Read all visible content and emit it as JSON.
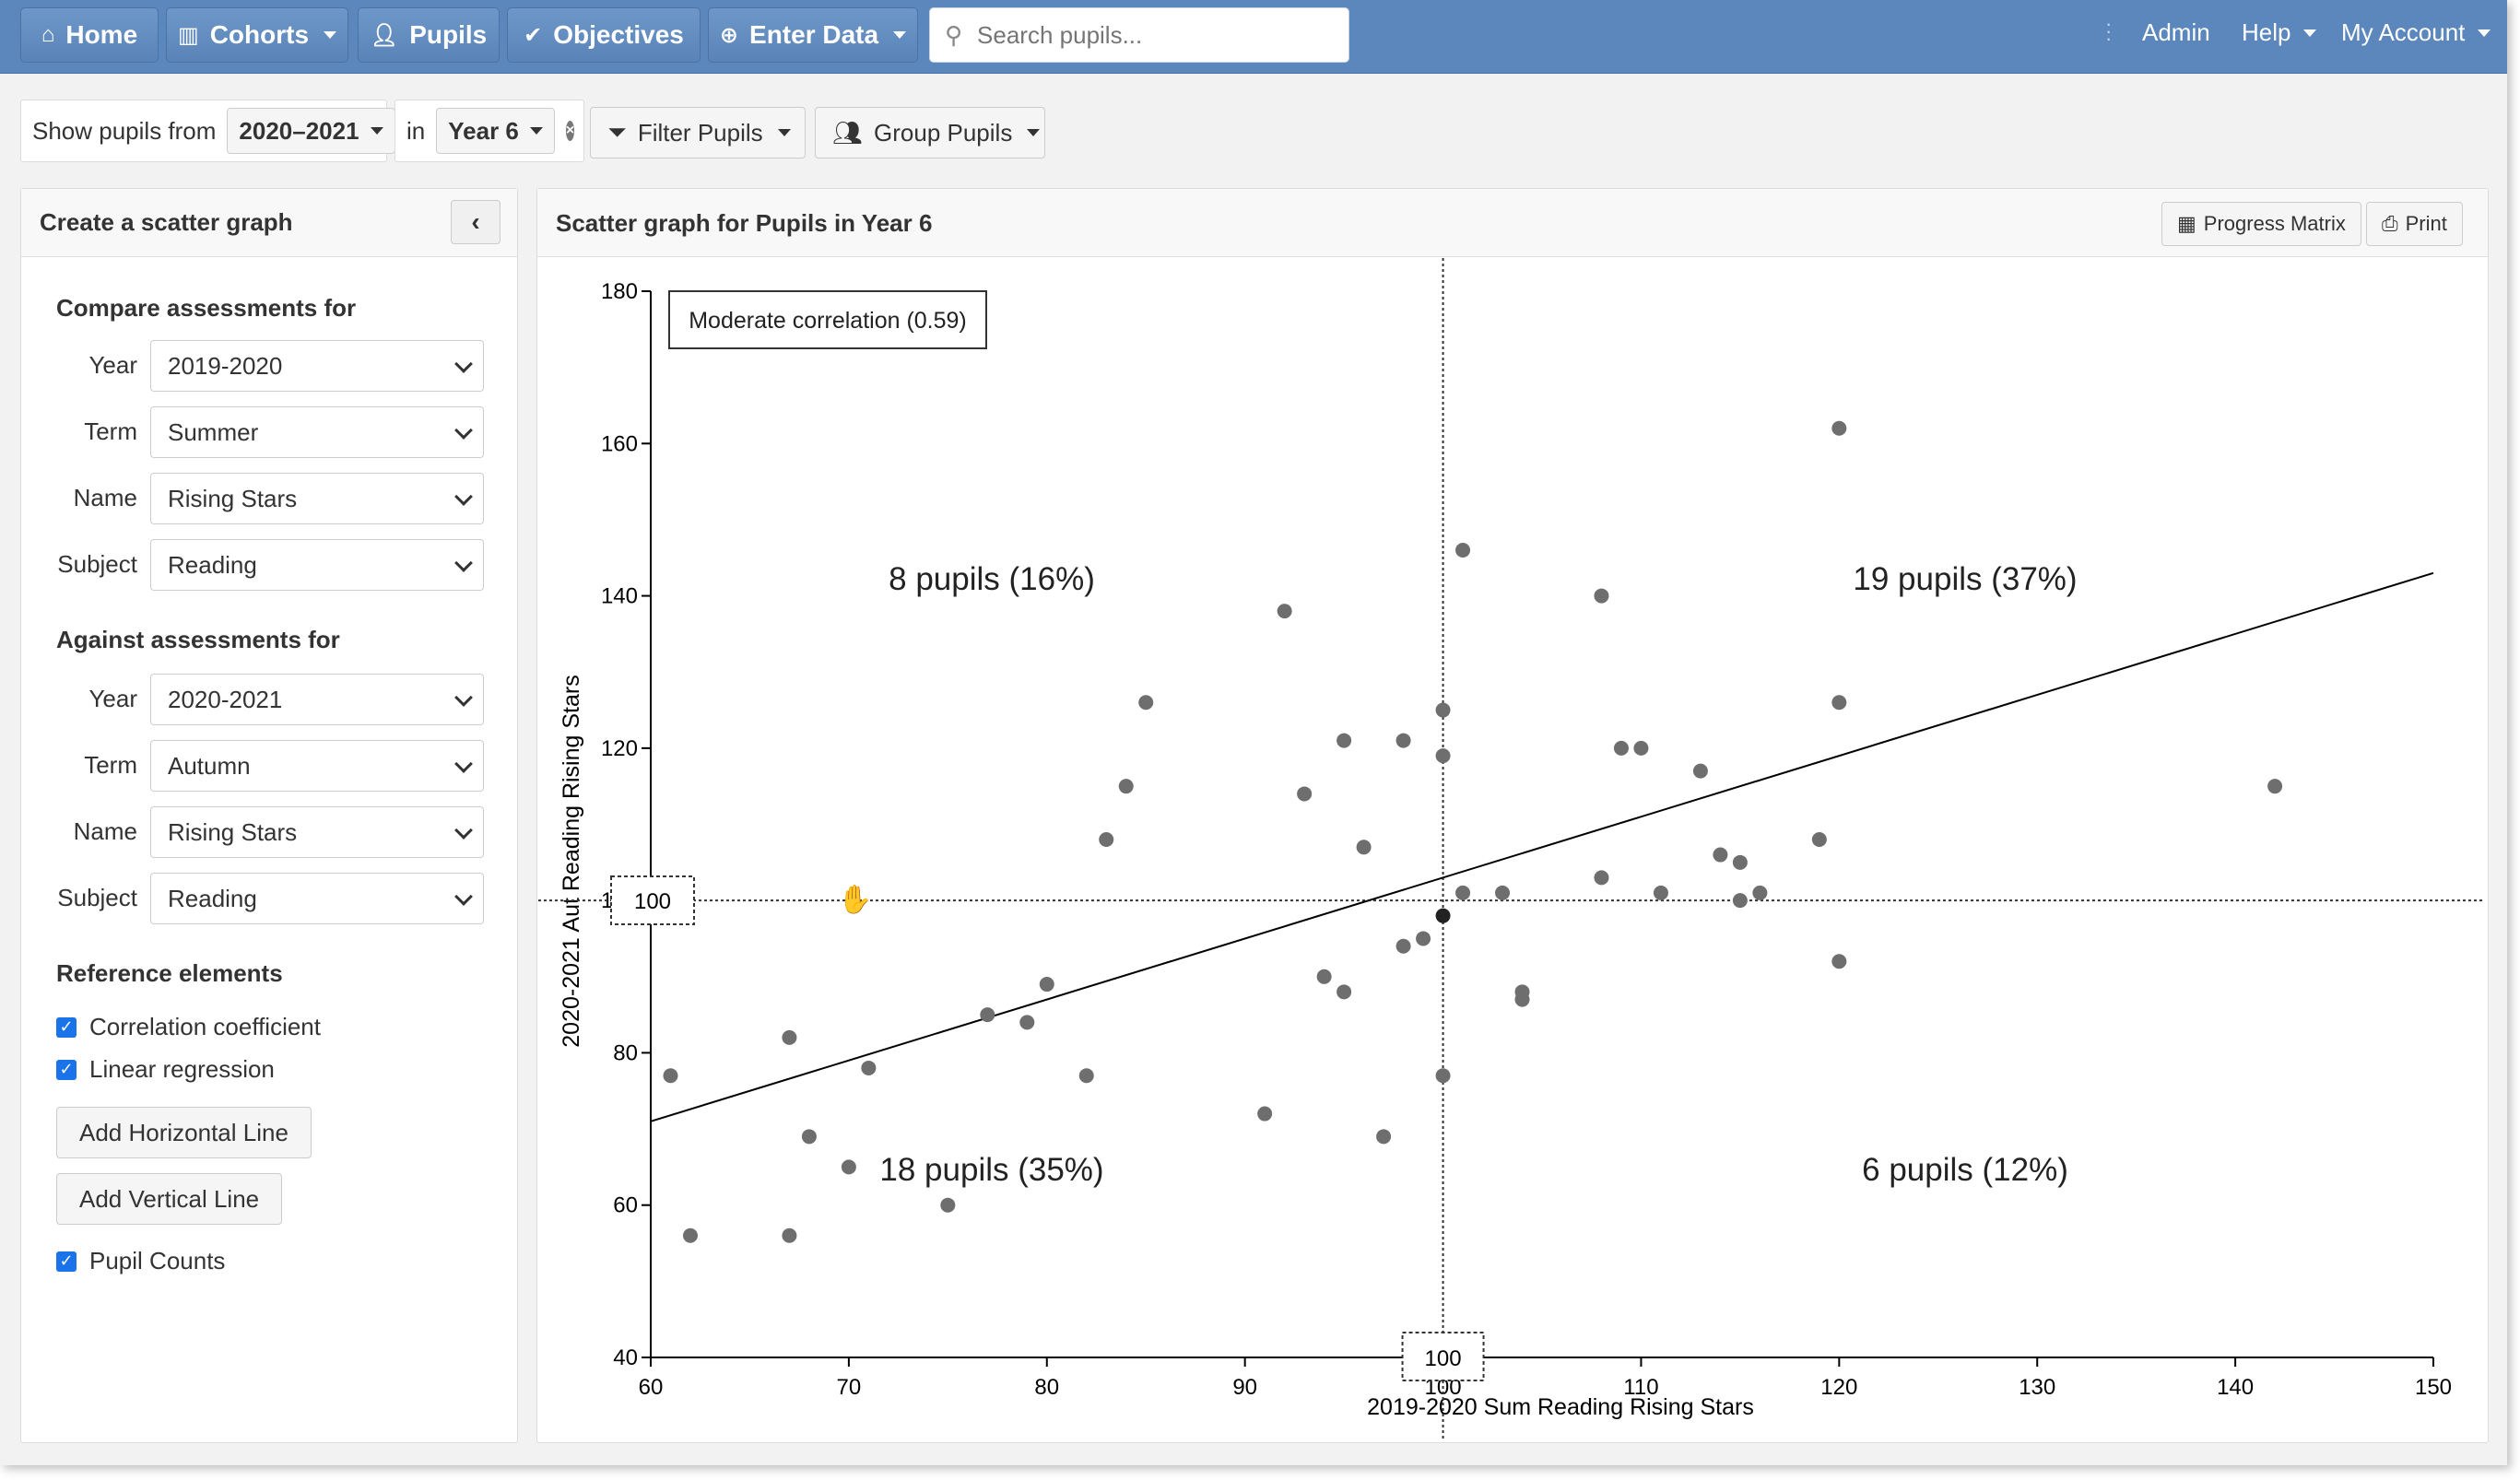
{
  "nav": {
    "home": "Home",
    "cohorts": "Cohorts",
    "pupils": "Pupils",
    "objectives": "Objectives",
    "enter_data": "Enter Data",
    "search_placeholder": "Search pupils...",
    "admin": "Admin",
    "help": "Help",
    "account": "My Account"
  },
  "filters": {
    "show_label": "Show pupils from",
    "year_value": "2020–2021",
    "in_label": "in",
    "group_value": "Year 6",
    "filter_btn": "Filter Pupils",
    "group_btn": "Group Pupils"
  },
  "left_panel": {
    "title": "Create a scatter graph",
    "compare_title": "Compare assessments for",
    "against_title": "Against assessments for",
    "labels": {
      "year": "Year",
      "term": "Term",
      "name": "Name",
      "subject": "Subject"
    },
    "compare": {
      "year": "2019-2020",
      "term": "Summer",
      "name": "Rising Stars",
      "subject": "Reading"
    },
    "against": {
      "year": "2020-2021",
      "term": "Autumn",
      "name": "Rising Stars",
      "subject": "Reading"
    },
    "reference_title": "Reference elements",
    "correlation_label": "Correlation coefficient",
    "regression_label": "Linear regression",
    "add_horizontal": "Add Horizontal Line",
    "add_vertical": "Add Vertical Line",
    "pupil_counts_label": "Pupil Counts"
  },
  "right_panel": {
    "title": "Scatter graph for Pupils in Year 6",
    "progress_matrix": "Progress Matrix",
    "print": "Print"
  },
  "chart_data": {
    "type": "scatter",
    "xlabel": "2019-2020 Sum Reading Rising Stars",
    "ylabel": "2020-2021 Aut Reading Rising Stars",
    "xlim": [
      60,
      150
    ],
    "ylim": [
      40,
      180
    ],
    "xticks": [
      60,
      70,
      80,
      90,
      100,
      110,
      120,
      130,
      140,
      150
    ],
    "yticks": [
      40,
      60,
      80,
      100,
      120,
      140,
      160,
      180
    ],
    "correlation_label": "Moderate correlation (0.59)",
    "reference_x": 100,
    "reference_y": 100,
    "reference_x_label": "100",
    "reference_y_label": "100",
    "regression": {
      "x1": 60,
      "y1": 71,
      "x2": 150,
      "y2": 143
    },
    "quadrants": {
      "top_left": "8 pupils (16%)",
      "top_right": "19 pupils (37%)",
      "bottom_left": "18 pupils (35%)",
      "bottom_right": "6 pupils (12%)"
    },
    "highlight_point": {
      "x": 100,
      "y": 98
    },
    "points": [
      [
        61,
        77
      ],
      [
        62,
        56
      ],
      [
        67,
        82
      ],
      [
        67,
        56
      ],
      [
        68,
        69
      ],
      [
        70,
        65
      ],
      [
        71,
        78
      ],
      [
        75,
        60
      ],
      [
        77,
        85
      ],
      [
        79,
        84
      ],
      [
        80,
        89
      ],
      [
        82,
        77
      ],
      [
        83,
        108
      ],
      [
        84,
        115
      ],
      [
        85,
        126
      ],
      [
        91,
        72
      ],
      [
        92,
        138
      ],
      [
        93,
        114
      ],
      [
        94,
        90
      ],
      [
        95,
        121
      ],
      [
        95,
        88
      ],
      [
        96,
        107
      ],
      [
        97,
        69
      ],
      [
        98,
        121
      ],
      [
        98,
        94
      ],
      [
        99,
        95
      ],
      [
        100,
        125
      ],
      [
        100,
        119
      ],
      [
        100,
        77
      ],
      [
        101,
        146
      ],
      [
        101,
        101
      ],
      [
        103,
        101
      ],
      [
        104,
        88
      ],
      [
        104,
        87
      ],
      [
        108,
        140
      ],
      [
        108,
        103
      ],
      [
        109,
        120
      ],
      [
        110,
        120
      ],
      [
        111,
        101
      ],
      [
        113,
        117
      ],
      [
        114,
        106
      ],
      [
        115,
        105
      ],
      [
        115,
        100
      ],
      [
        116,
        101
      ],
      [
        119,
        108
      ],
      [
        120,
        162
      ],
      [
        120,
        126
      ],
      [
        120,
        92
      ],
      [
        142,
        115
      ]
    ]
  }
}
